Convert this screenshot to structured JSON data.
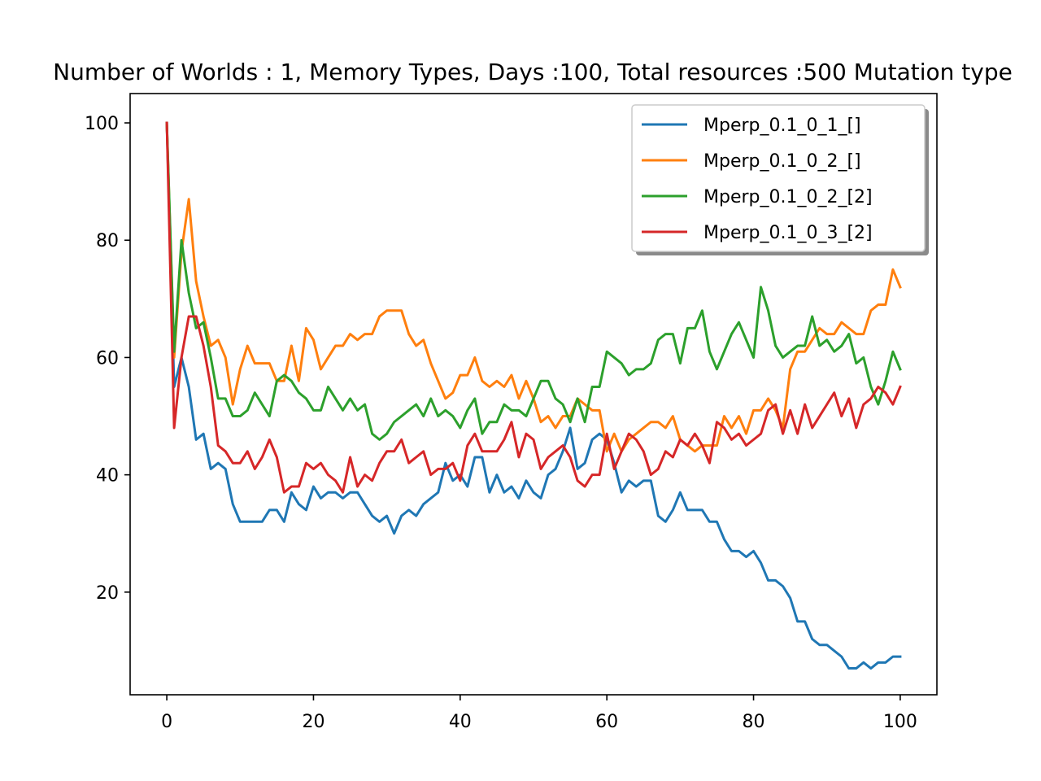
{
  "chart_data": {
    "type": "line",
    "title": "Number of Worlds : 1,  Memory Types,  Days :100, Total resources :500 Mutation type",
    "xlabel": "",
    "ylabel": "",
    "xlim": [
      -5,
      105
    ],
    "ylim": [
      2.5,
      105
    ],
    "xticks": [
      0,
      20,
      40,
      60,
      80,
      100
    ],
    "yticks": [
      20,
      40,
      60,
      80,
      100
    ],
    "grid": false,
    "legend_position": "top-right",
    "series": [
      {
        "name": "Mperp_0.1_0_1_[]",
        "color": "#1f77b4",
        "x": [
          0,
          1,
          2,
          3,
          4,
          5,
          6,
          7,
          8,
          9,
          10,
          11,
          12,
          13,
          14,
          15,
          16,
          17,
          18,
          19,
          20,
          21,
          22,
          23,
          24,
          25,
          26,
          27,
          28,
          29,
          30,
          31,
          32,
          33,
          34,
          35,
          36,
          37,
          38,
          39,
          40,
          41,
          42,
          43,
          44,
          45,
          46,
          47,
          48,
          49,
          50,
          51,
          52,
          53,
          54,
          55,
          56,
          57,
          58,
          59,
          60,
          61,
          62,
          63,
          64,
          65,
          66,
          67,
          68,
          69,
          70,
          71,
          72,
          73,
          74,
          75,
          76,
          77,
          78,
          79,
          80,
          81,
          82,
          83,
          84,
          85,
          86,
          87,
          88,
          89,
          90,
          91,
          92,
          93,
          94,
          95,
          96,
          97,
          98,
          99,
          100
        ],
        "y": [
          100,
          55,
          60,
          55,
          46,
          47,
          41,
          42,
          41,
          35,
          32,
          32,
          32,
          32,
          34,
          34,
          32,
          37,
          35,
          34,
          38,
          36,
          37,
          37,
          36,
          37,
          37,
          35,
          33,
          32,
          33,
          30,
          33,
          34,
          33,
          35,
          36,
          37,
          42,
          39,
          40,
          38,
          43,
          43,
          37,
          40,
          37,
          38,
          36,
          39,
          37,
          36,
          40,
          41,
          44,
          48,
          41,
          42,
          46,
          47,
          46,
          42,
          37,
          39,
          38,
          39,
          39,
          33,
          32,
          34,
          37,
          34,
          34,
          34,
          32,
          32,
          29,
          27,
          27,
          26,
          27,
          25,
          22,
          22,
          21,
          19,
          15,
          15,
          12,
          11,
          11,
          10,
          9,
          7,
          7,
          8,
          7,
          8,
          8,
          9,
          9
        ]
      },
      {
        "name": "Mperp_0.1_0_2_[]",
        "color": "#ff7f0e",
        "x": [
          0,
          1,
          2,
          3,
          4,
          5,
          6,
          7,
          8,
          9,
          10,
          11,
          12,
          13,
          14,
          15,
          16,
          17,
          18,
          19,
          20,
          21,
          22,
          23,
          24,
          25,
          26,
          27,
          28,
          29,
          30,
          31,
          32,
          33,
          34,
          35,
          36,
          37,
          38,
          39,
          40,
          41,
          42,
          43,
          44,
          45,
          46,
          47,
          48,
          49,
          50,
          51,
          52,
          53,
          54,
          55,
          56,
          57,
          58,
          59,
          60,
          61,
          62,
          63,
          64,
          65,
          66,
          67,
          68,
          69,
          70,
          71,
          72,
          73,
          74,
          75,
          76,
          77,
          78,
          79,
          80,
          81,
          82,
          83,
          84,
          85,
          86,
          87,
          88,
          89,
          90,
          91,
          92,
          93,
          94,
          95,
          96,
          97,
          98,
          99,
          100
        ],
        "y": [
          100,
          60,
          78,
          87,
          73,
          67,
          62,
          63,
          60,
          52,
          58,
          62,
          59,
          59,
          59,
          56,
          56,
          62,
          56,
          65,
          63,
          58,
          60,
          62,
          62,
          64,
          63,
          64,
          64,
          67,
          68,
          68,
          68,
          64,
          62,
          63,
          59,
          56,
          53,
          54,
          57,
          57,
          60,
          56,
          55,
          56,
          55,
          57,
          53,
          56,
          53,
          49,
          50,
          48,
          50,
          50,
          53,
          52,
          51,
          51,
          44,
          47,
          44,
          46,
          47,
          48,
          49,
          49,
          48,
          50,
          46,
          45,
          44,
          45,
          45,
          45,
          50,
          48,
          50,
          47,
          51,
          51,
          53,
          51,
          48,
          58,
          61,
          61,
          63,
          65,
          64,
          64,
          66,
          65,
          64,
          64,
          68,
          69,
          69,
          75,
          72
        ]
      },
      {
        "name": "Mperp_0.1_0_2_[2]",
        "color": "#2ca02c",
        "x": [
          0,
          1,
          2,
          3,
          4,
          5,
          6,
          7,
          8,
          9,
          10,
          11,
          12,
          13,
          14,
          15,
          16,
          17,
          18,
          19,
          20,
          21,
          22,
          23,
          24,
          25,
          26,
          27,
          28,
          29,
          30,
          31,
          32,
          33,
          34,
          35,
          36,
          37,
          38,
          39,
          40,
          41,
          42,
          43,
          44,
          45,
          46,
          47,
          48,
          49,
          50,
          51,
          52,
          53,
          54,
          55,
          56,
          57,
          58,
          59,
          60,
          61,
          62,
          63,
          64,
          65,
          66,
          67,
          68,
          69,
          70,
          71,
          72,
          73,
          74,
          75,
          76,
          77,
          78,
          79,
          80,
          81,
          82,
          83,
          84,
          85,
          86,
          87,
          88,
          89,
          90,
          91,
          92,
          93,
          94,
          95,
          96,
          97,
          98,
          99,
          100
        ],
        "y": [
          100,
          61,
          80,
          71,
          65,
          66,
          60,
          53,
          53,
          50,
          50,
          51,
          54,
          52,
          50,
          56,
          57,
          56,
          54,
          53,
          51,
          51,
          55,
          53,
          51,
          53,
          51,
          52,
          47,
          46,
          47,
          49,
          50,
          51,
          52,
          50,
          53,
          50,
          51,
          50,
          48,
          51,
          53,
          47,
          49,
          49,
          52,
          51,
          51,
          50,
          53,
          56,
          56,
          53,
          52,
          49,
          53,
          49,
          55,
          55,
          61,
          60,
          59,
          57,
          58,
          58,
          59,
          63,
          64,
          64,
          59,
          65,
          65,
          68,
          61,
          58,
          61,
          64,
          66,
          63,
          60,
          72,
          68,
          62,
          60,
          61,
          62,
          62,
          67,
          62,
          63,
          61,
          62,
          64,
          59,
          60,
          55,
          52,
          56,
          61,
          58
        ]
      },
      {
        "name": "Mperp_0.1_0_3_[2]",
        "color": "#d62728",
        "x": [
          0,
          1,
          2,
          3,
          4,
          5,
          6,
          7,
          8,
          9,
          10,
          11,
          12,
          13,
          14,
          15,
          16,
          17,
          18,
          19,
          20,
          21,
          22,
          23,
          24,
          25,
          26,
          27,
          28,
          29,
          30,
          31,
          32,
          33,
          34,
          35,
          36,
          37,
          38,
          39,
          40,
          41,
          42,
          43,
          44,
          45,
          46,
          47,
          48,
          49,
          50,
          51,
          52,
          53,
          54,
          55,
          56,
          57,
          58,
          59,
          60,
          61,
          62,
          63,
          64,
          65,
          66,
          67,
          68,
          69,
          70,
          71,
          72,
          73,
          74,
          75,
          76,
          77,
          78,
          79,
          80,
          81,
          82,
          83,
          84,
          85,
          86,
          87,
          88,
          89,
          90,
          91,
          92,
          93,
          94,
          95,
          96,
          97,
          98,
          99,
          100
        ],
        "y": [
          100,
          48,
          60,
          67,
          67,
          62,
          55,
          45,
          44,
          42,
          42,
          44,
          41,
          43,
          46,
          43,
          37,
          38,
          38,
          42,
          41,
          42,
          40,
          39,
          37,
          43,
          38,
          40,
          39,
          42,
          44,
          44,
          46,
          42,
          43,
          44,
          40,
          41,
          41,
          42,
          39,
          45,
          47,
          44,
          44,
          44,
          46,
          49,
          43,
          47,
          46,
          41,
          43,
          44,
          45,
          43,
          39,
          38,
          40,
          40,
          47,
          41,
          44,
          47,
          46,
          44,
          40,
          41,
          44,
          43,
          46,
          45,
          47,
          45,
          42,
          49,
          48,
          46,
          47,
          45,
          46,
          47,
          51,
          52,
          47,
          51,
          47,
          52,
          48,
          50,
          52,
          54,
          50,
          53,
          48,
          52,
          53,
          55,
          54,
          52,
          55
        ]
      }
    ]
  }
}
